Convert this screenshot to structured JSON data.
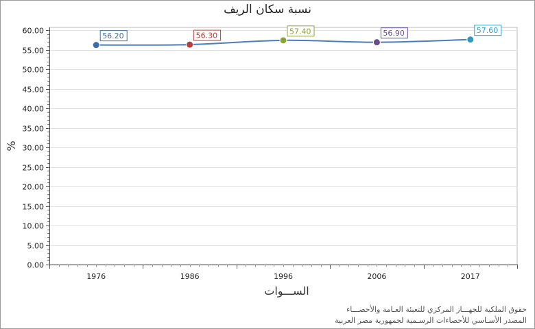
{
  "chart_data": {
    "type": "line",
    "title": "نسبة سكان الريف",
    "xlabel": "الســـوات",
    "ylabel": "%",
    "categories": [
      "1976",
      "1986",
      "1996",
      "2006",
      "2017"
    ],
    "series": [
      {
        "values": [
          56.2,
          56.3,
          57.4,
          56.9,
          57.6
        ]
      }
    ],
    "data_labels": [
      "56.20",
      "56.30",
      "57.40",
      "56.90",
      "57.60"
    ],
    "point_colors": [
      "#3f6fa6",
      "#b0413e",
      "#8aa33a",
      "#6a4c93",
      "#2f9ac4"
    ],
    "line_color": "#4a7dc0",
    "ylim": [
      0,
      60
    ],
    "yticks": [
      "0.00",
      "5.00",
      "10.00",
      "15.00",
      "20.00",
      "25.00",
      "30.00",
      "35.00",
      "40.00",
      "45.00",
      "50.00",
      "55.00",
      "60.00"
    ],
    "grid": true,
    "legend": "none"
  },
  "footer": {
    "line1": "حقوق الملكية للجهـــاز المركزي للتعبئة العـامة والأحصـــاء",
    "line2": "المصدر الأسـاسي للأحصاءات الرسـمية لجمهورية مصر العربية"
  }
}
